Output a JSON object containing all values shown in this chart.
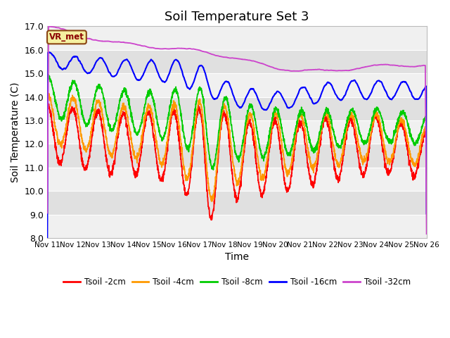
{
  "title": "Soil Temperature Set 3",
  "xlabel": "Time",
  "ylabel": "Soil Temperature (C)",
  "ylim": [
    8.0,
    17.0
  ],
  "yticks": [
    8.0,
    9.0,
    10.0,
    11.0,
    12.0,
    13.0,
    14.0,
    15.0,
    16.0,
    17.0
  ],
  "xtick_labels": [
    "Nov 11",
    "Nov 12",
    "Nov 13",
    "Nov 14",
    "Nov 15",
    "Nov 16",
    "Nov 17",
    "Nov 18",
    "Nov 19",
    "Nov 20",
    "Nov 21",
    "Nov 22",
    "Nov 23",
    "Nov 24",
    "Nov 25",
    "Nov 26"
  ],
  "line_colors": [
    "#ff0000",
    "#ff9900",
    "#00cc00",
    "#0000ff",
    "#cc44cc"
  ],
  "line_labels": [
    "Tsoil -2cm",
    "Tsoil -4cm",
    "Tsoil -8cm",
    "Tsoil -16cm",
    "Tsoil -32cm"
  ],
  "background_color": "#ffffff",
  "plot_bg_light": "#f0f0f0",
  "plot_bg_dark": "#e0e0e0",
  "vr_met_label": "VR_met",
  "title_fontsize": 13,
  "label_fontsize": 10,
  "tick_fontsize": 9
}
